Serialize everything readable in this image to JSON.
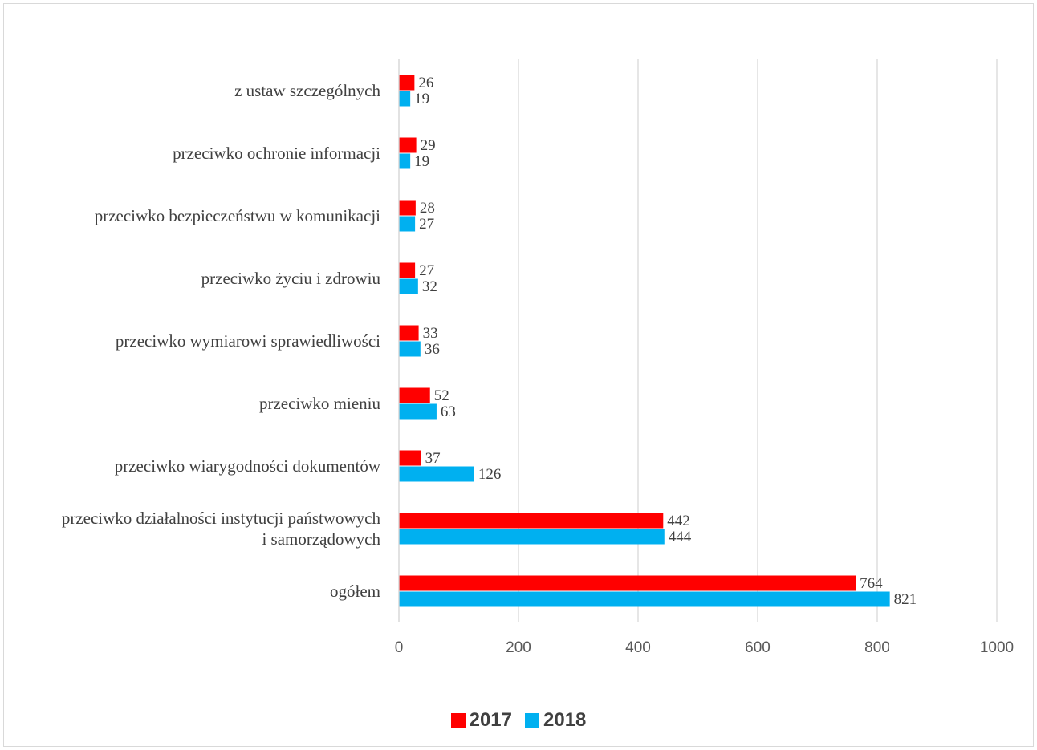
{
  "chart_data": {
    "type": "bar",
    "orientation": "horizontal",
    "categories": [
      [
        "z ustaw szczególnych"
      ],
      [
        "przeciwko ochronie informacji"
      ],
      [
        "przeciwko bezpieczeństwu w komunikacji"
      ],
      [
        "przeciwko życiu i zdrowiu"
      ],
      [
        "przeciwko wymiarowi sprawiedliwości"
      ],
      [
        "przeciwko mieniu"
      ],
      [
        "przeciwko wiarygodności dokumentów"
      ],
      [
        "przeciwko działalności instytucji państwowych",
        "i samorządowych"
      ],
      [
        "ogółem"
      ]
    ],
    "series": [
      {
        "name": "2017",
        "color": "#ff0000",
        "values": [
          26,
          29,
          28,
          27,
          33,
          52,
          37,
          442,
          764
        ]
      },
      {
        "name": "2018",
        "color": "#00b0f0",
        "values": [
          19,
          19,
          27,
          32,
          36,
          63,
          126,
          444,
          821
        ]
      }
    ],
    "xlim": [
      0,
      1000
    ],
    "xticks": [
      0,
      200,
      400,
      600,
      800,
      1000
    ],
    "grid": true,
    "legend_position": "bottom",
    "title": "",
    "xlabel": "",
    "ylabel": ""
  }
}
